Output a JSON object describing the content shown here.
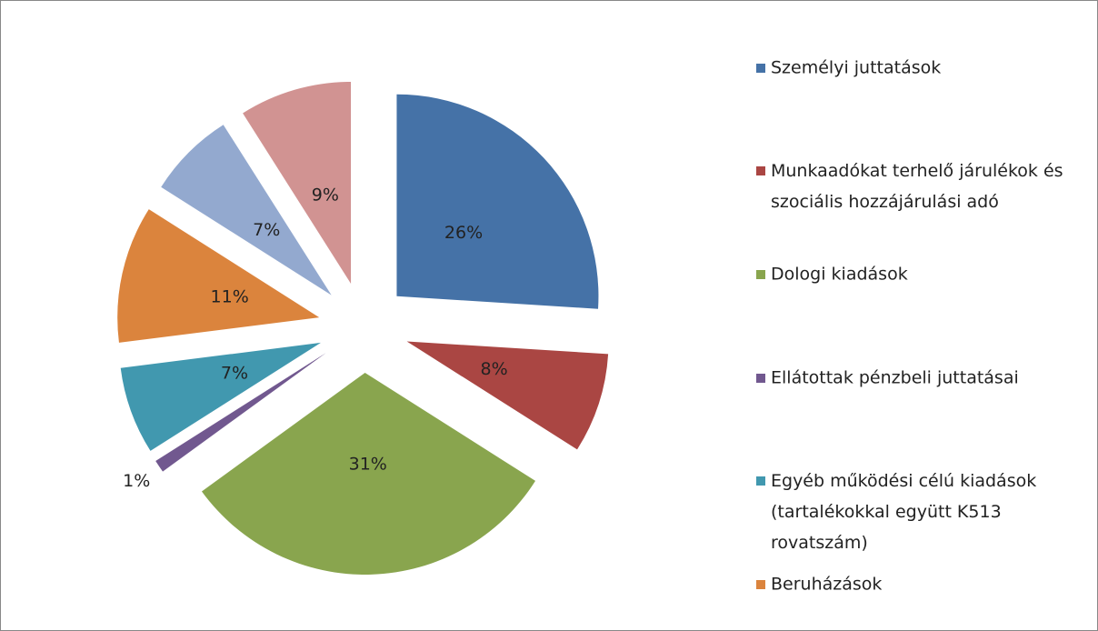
{
  "chart_data": {
    "type": "pie",
    "categories": [
      "Személyi juttatások",
      "Munkaadókat terhelő járulékok és szociális hozzájárulási adó",
      "Dologi kiadások",
      "Ellátottak pénzbeli juttatásai",
      "Egyéb működési célú kiadások (tartalékokkal együtt K513 rovatszám)",
      "Beruházások",
      null,
      null
    ],
    "values": [
      26,
      8,
      31,
      1,
      7,
      11,
      7,
      9
    ],
    "value_labels": [
      "26%",
      "8%",
      "31%",
      "1%",
      "7%",
      "11%",
      "7%",
      "9%"
    ],
    "colors": [
      "#4572a7",
      "#aa4643",
      "#89a54e",
      "#71588f",
      "#4198af",
      "#db843d",
      "#93a9cf",
      "#d19392"
    ],
    "exploded": true,
    "legend": "right"
  }
}
